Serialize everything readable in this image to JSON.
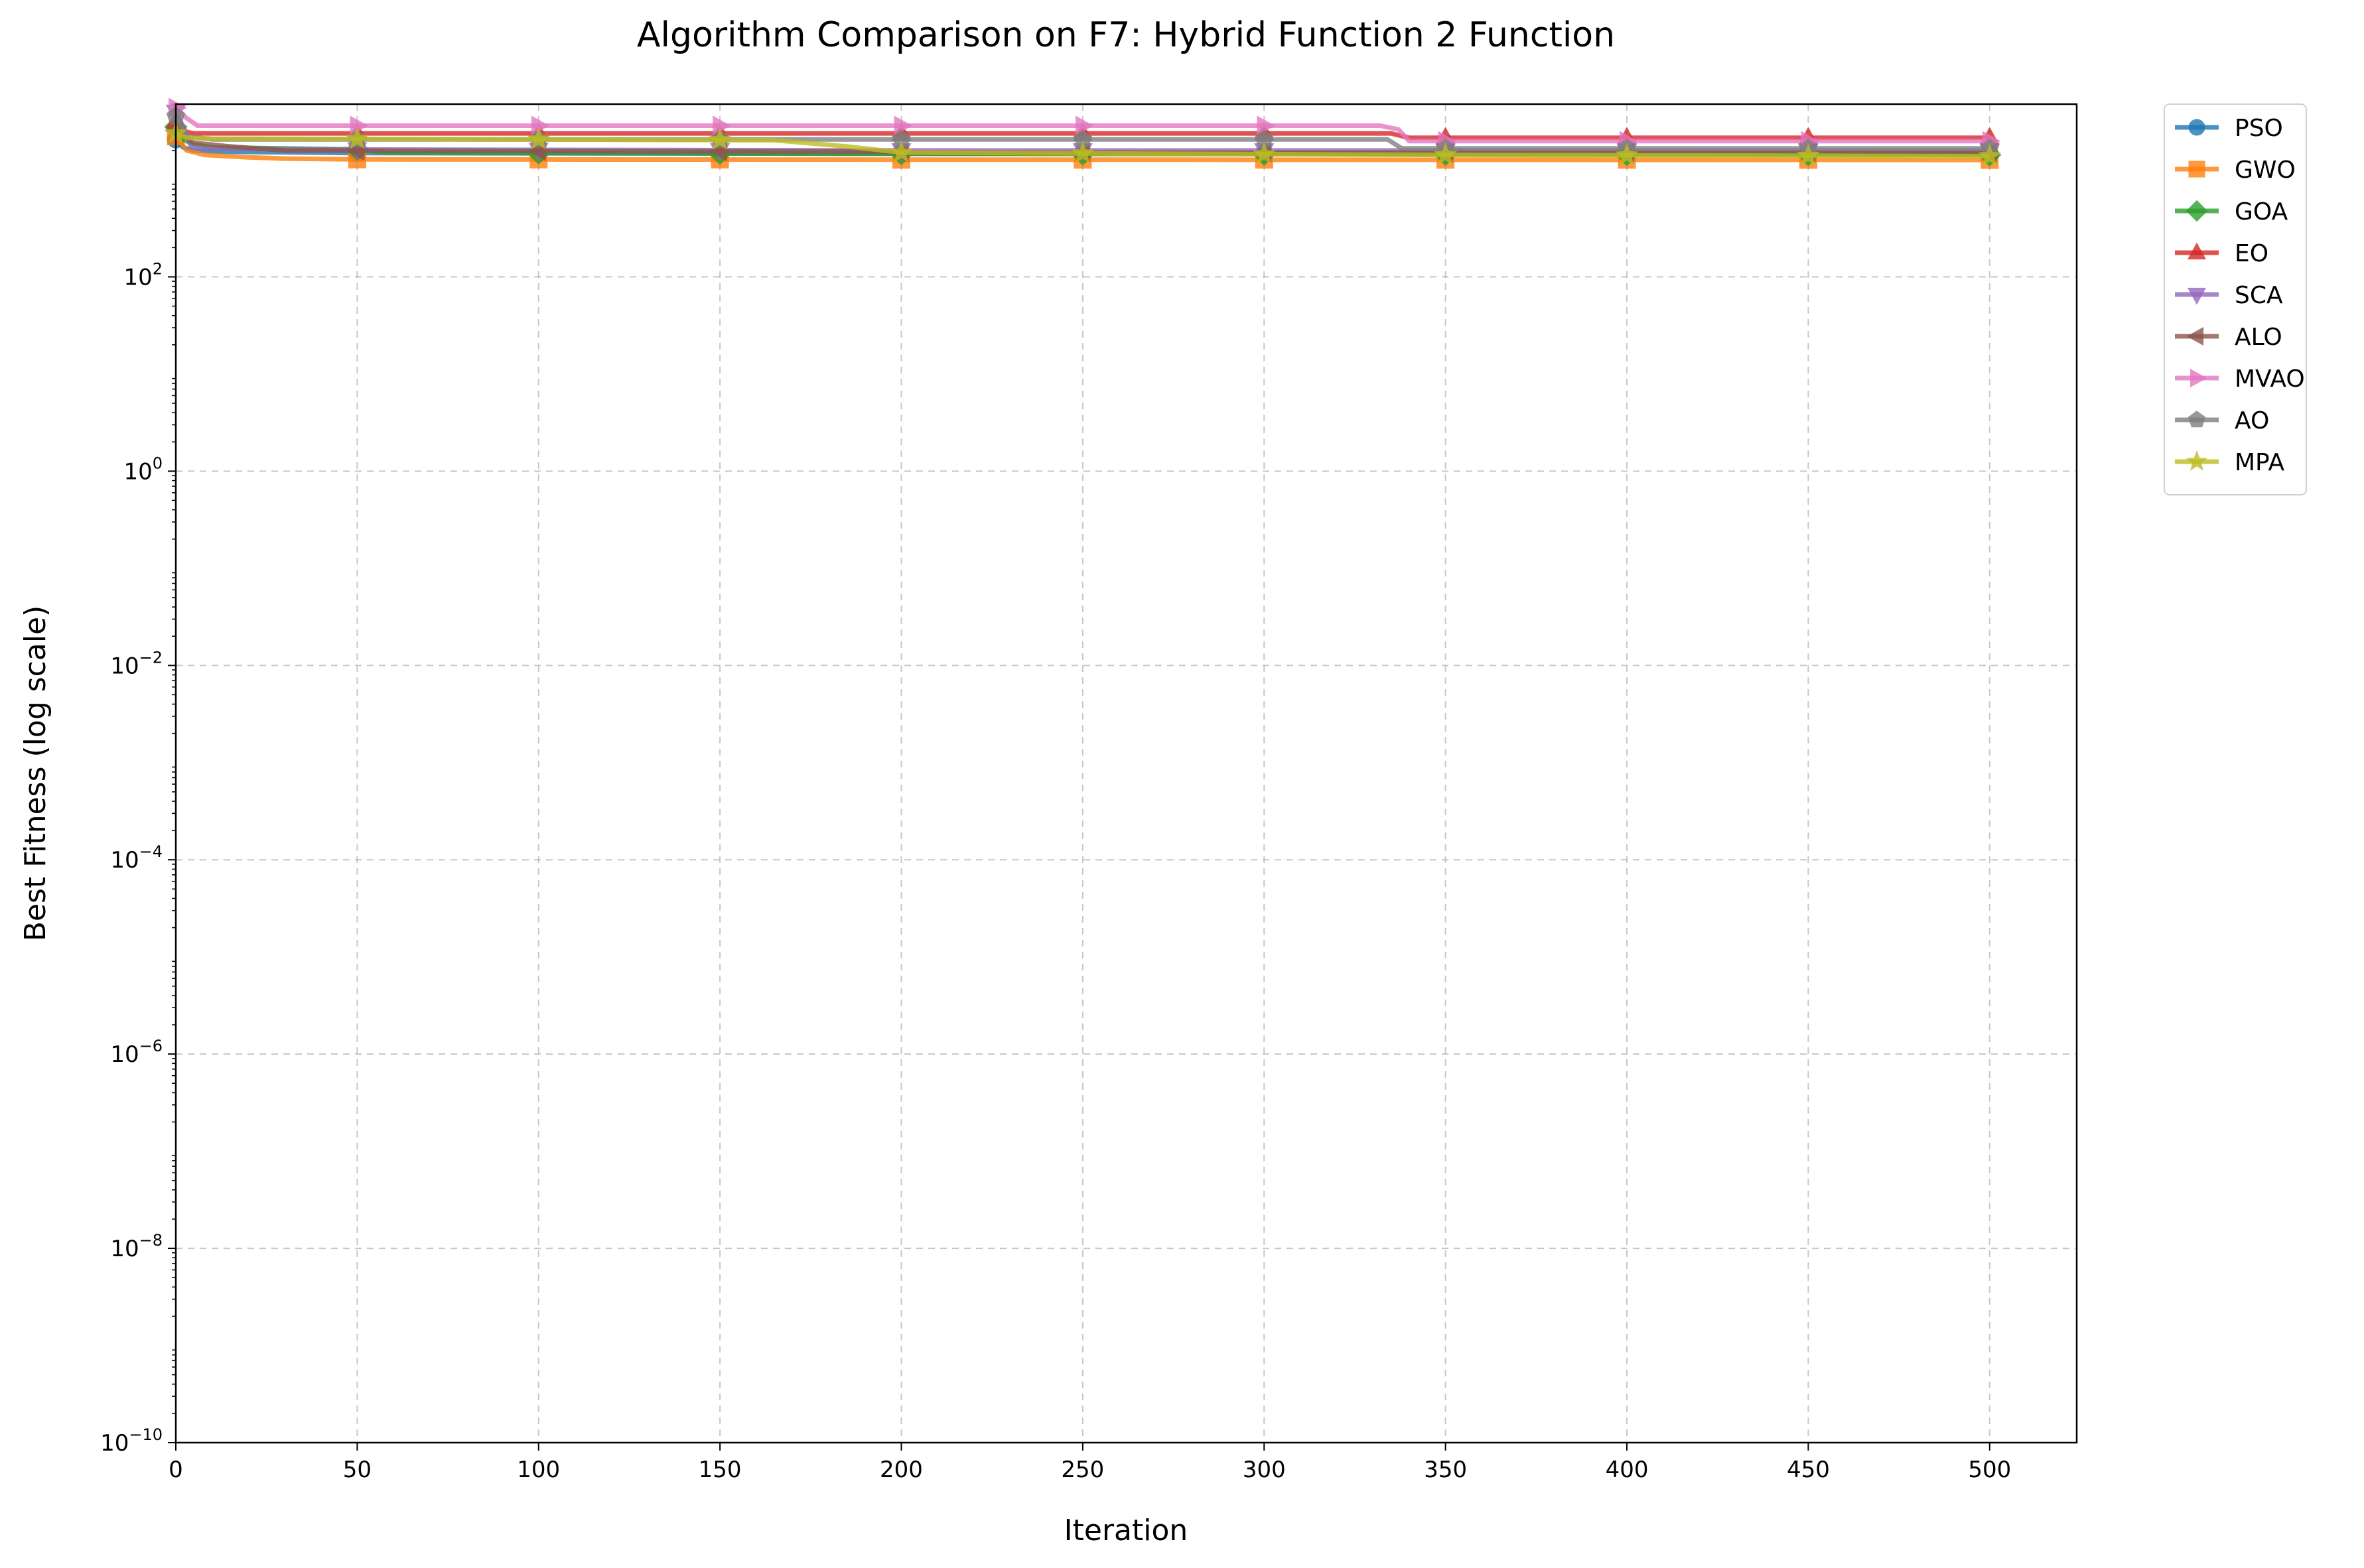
{
  "chart_data": {
    "type": "line",
    "title": "Algorithm Comparison on F7: Hybrid Function 2 Function",
    "xlabel": "Iteration",
    "ylabel": "Best Fitness (log scale)",
    "xlim": [
      0,
      524
    ],
    "ylim": [
      1e-10,
      6000
    ],
    "yscale": "log",
    "grid": true,
    "legend_position": "outside-top-right",
    "x_ticks": [
      0,
      50,
      100,
      150,
      200,
      250,
      300,
      350,
      400,
      450,
      500
    ],
    "x_tick_labels": [
      "0",
      "50",
      "100",
      "150",
      "200",
      "250",
      "300",
      "350",
      "400",
      "450",
      "500"
    ],
    "y_tick_exponents": [
      -10,
      -8,
      -6,
      -4,
      -2,
      0,
      2
    ],
    "marker_every": 50,
    "series": [
      {
        "name": "PSO",
        "color": "#1f77b4",
        "marker": "circle",
        "points": [
          [
            0,
            2600
          ],
          [
            2,
            2150
          ],
          [
            5,
            2000
          ],
          [
            10,
            1950
          ],
          [
            50,
            1880
          ],
          [
            200,
            1850
          ],
          [
            500,
            1850
          ]
        ]
      },
      {
        "name": "GWO",
        "color": "#ff7f0e",
        "marker": "square",
        "points": [
          [
            0,
            2800
          ],
          [
            3,
            2000
          ],
          [
            8,
            1800
          ],
          [
            20,
            1700
          ],
          [
            30,
            1650
          ],
          [
            50,
            1620
          ],
          [
            200,
            1610
          ],
          [
            500,
            1600
          ]
        ]
      },
      {
        "name": "GOA",
        "color": "#2ca02c",
        "marker": "diamond",
        "points": [
          [
            0,
            3500
          ],
          [
            2,
            2600
          ],
          [
            5,
            2300
          ],
          [
            10,
            2150
          ],
          [
            50,
            2050
          ],
          [
            58,
            1900
          ],
          [
            200,
            1850
          ],
          [
            500,
            1800
          ]
        ]
      },
      {
        "name": "EO",
        "color": "#d62728",
        "marker": "triangle-up",
        "points": [
          [
            0,
            4000
          ],
          [
            3,
            3100
          ],
          [
            5,
            3000
          ],
          [
            335,
            3000
          ],
          [
            340,
            2700
          ],
          [
            500,
            2700
          ]
        ]
      },
      {
        "name": "SCA",
        "color": "#9467bd",
        "marker": "triangle-down",
        "points": [
          [
            0,
            5000
          ],
          [
            2,
            3500
          ],
          [
            4,
            2300
          ],
          [
            6,
            2100
          ],
          [
            30,
            2050
          ],
          [
            200,
            2000
          ],
          [
            500,
            2000
          ]
        ]
      },
      {
        "name": "ALO",
        "color": "#8c564b",
        "marker": "triangle-left",
        "points": [
          [
            0,
            3200
          ],
          [
            5,
            2400
          ],
          [
            15,
            2200
          ],
          [
            30,
            2000
          ],
          [
            195,
            1950
          ],
          [
            200,
            1900
          ],
          [
            500,
            1900
          ]
        ]
      },
      {
        "name": "MVAO",
        "color": "#e377c2",
        "marker": "triangle-right",
        "points": [
          [
            0,
            5500
          ],
          [
            3,
            4300
          ],
          [
            6,
            3600
          ],
          [
            332,
            3600
          ],
          [
            337,
            3300
          ],
          [
            340,
            2500
          ],
          [
            500,
            2500
          ]
        ]
      },
      {
        "name": "AO",
        "color": "#7f7f7f",
        "marker": "pentagon",
        "points": [
          [
            0,
            4500
          ],
          [
            3,
            2800
          ],
          [
            10,
            2600
          ],
          [
            334,
            2600
          ],
          [
            338,
            2100
          ],
          [
            500,
            2100
          ]
        ]
      },
      {
        "name": "MPA",
        "color": "#bcbd22",
        "marker": "star",
        "points": [
          [
            0,
            3000
          ],
          [
            3,
            2700
          ],
          [
            10,
            2650
          ],
          [
            165,
            2550
          ],
          [
            185,
            2200
          ],
          [
            195,
            2000
          ],
          [
            200,
            1900
          ],
          [
            350,
            1800
          ],
          [
            500,
            1750
          ]
        ]
      }
    ]
  }
}
